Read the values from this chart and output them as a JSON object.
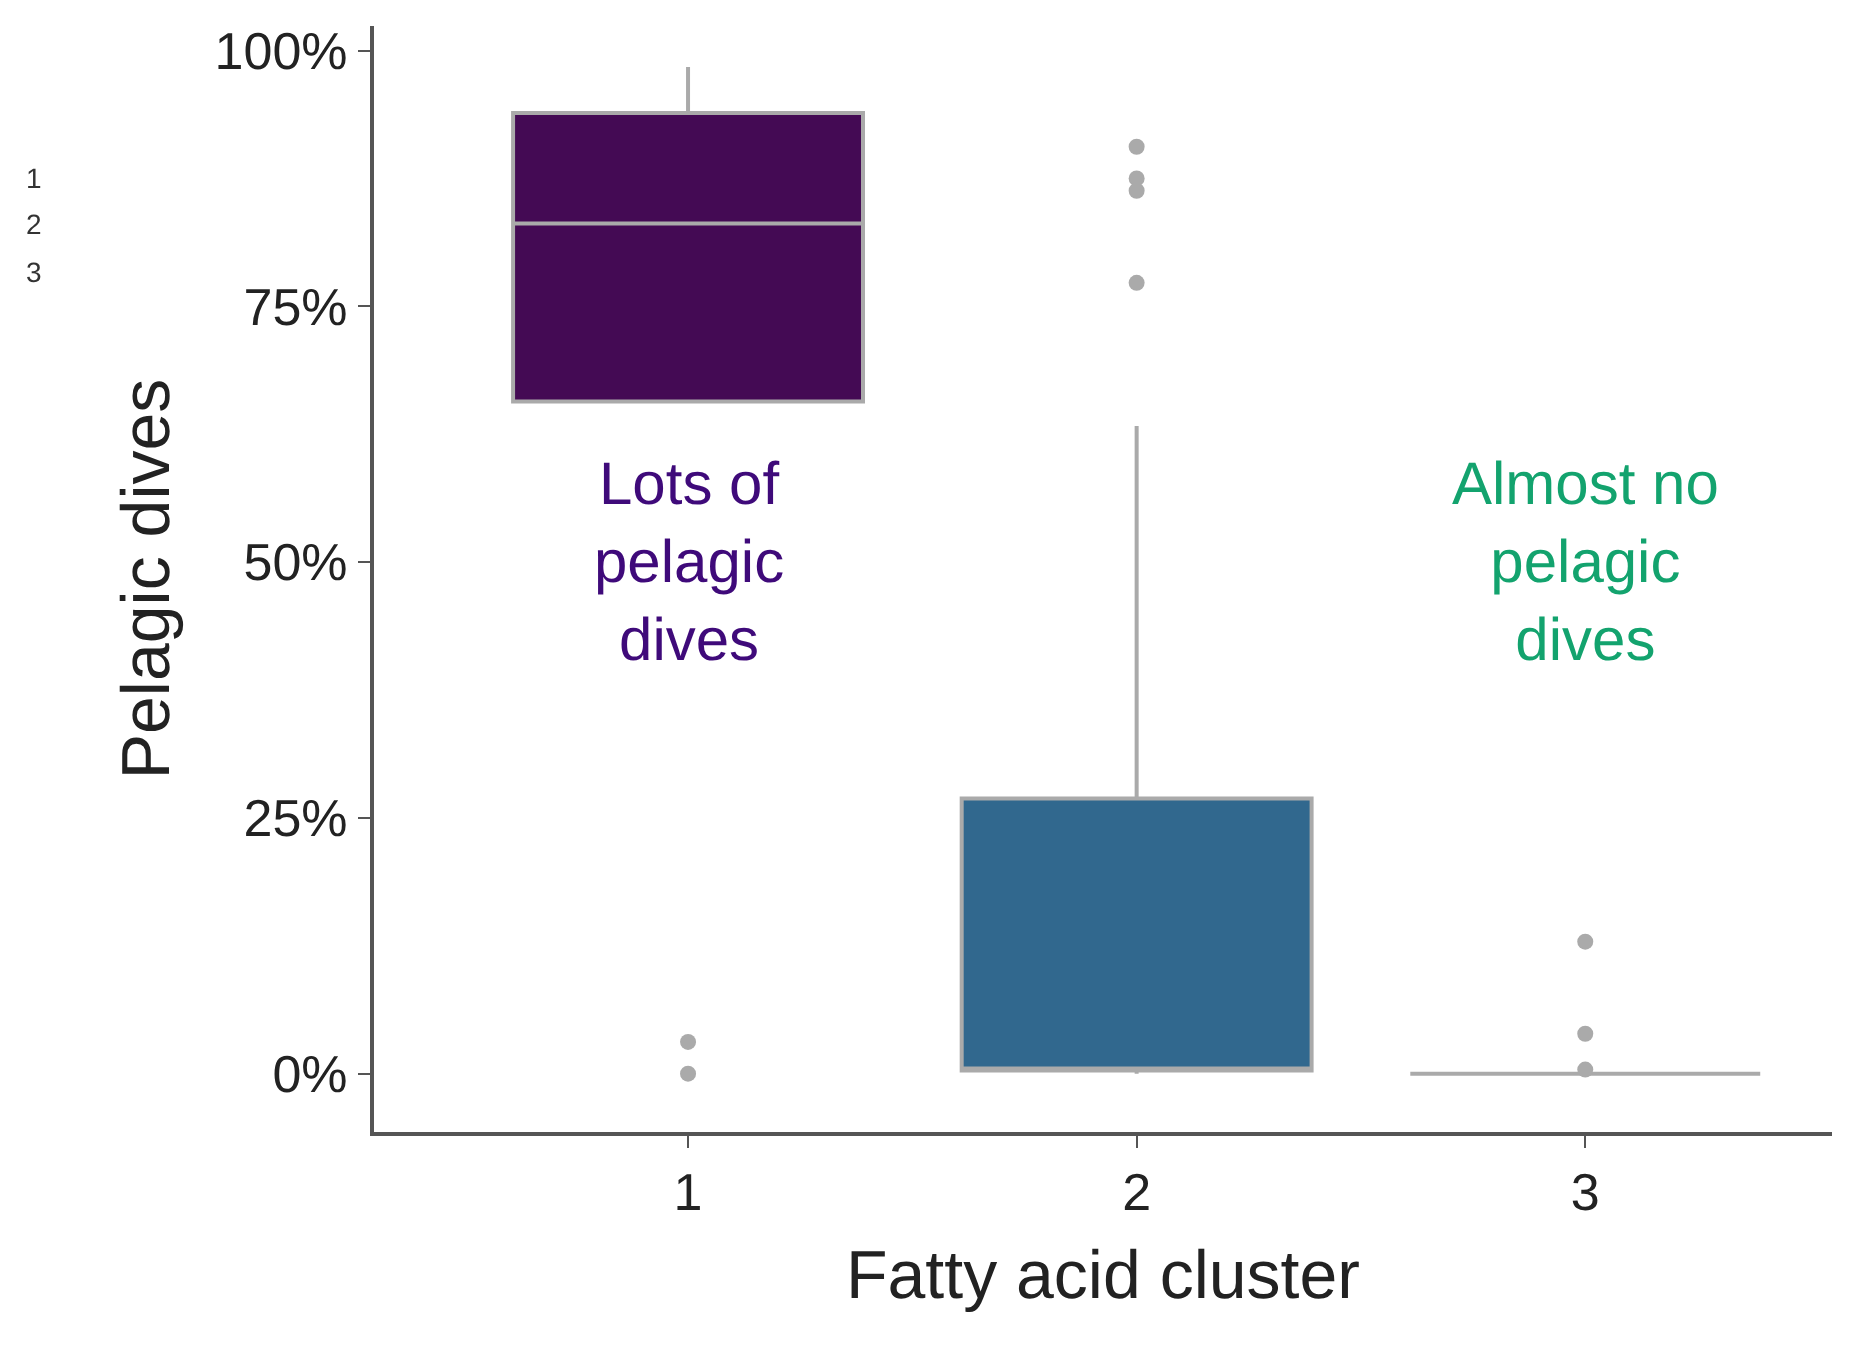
{
  "chart_data": {
    "type": "box",
    "xlabel": "Fatty acid cluster",
    "ylabel": "Pelagic dives",
    "categories": [
      "1",
      "2",
      "3"
    ],
    "colors": [
      "#440a54",
      "#31688e",
      "#aaaaaa"
    ],
    "boxes": [
      {
        "low": 65.7,
        "q1": 65.7,
        "median": 83.1,
        "q3": 93.9,
        "high": 98.4,
        "outliers": [
          3.1,
          0
        ]
      },
      {
        "low": 0,
        "q1": 0.3,
        "median": 0.3,
        "q3": 26.9,
        "high": 63.3,
        "outliers": [
          90.6,
          87.5,
          86.3,
          77.3
        ]
      },
      {
        "low": 0,
        "q1": 0,
        "median": 0,
        "q3": 0,
        "high": 0,
        "outliers": [
          12.9,
          3.9,
          0.4
        ]
      }
    ],
    "ylim": [
      -5.7,
      102.4
    ],
    "yticks": [
      {
        "value": 0,
        "label": "0%"
      },
      {
        "value": 25,
        "label": "25%"
      },
      {
        "value": 50,
        "label": "50%"
      },
      {
        "value": 75,
        "label": "75%"
      },
      {
        "value": 100,
        "label": "100%"
      }
    ],
    "annotations": [
      "Lots of\npelagic\ndives",
      "Almost no\npelagic\ndives",
      "1",
      "2",
      "3"
    ]
  }
}
